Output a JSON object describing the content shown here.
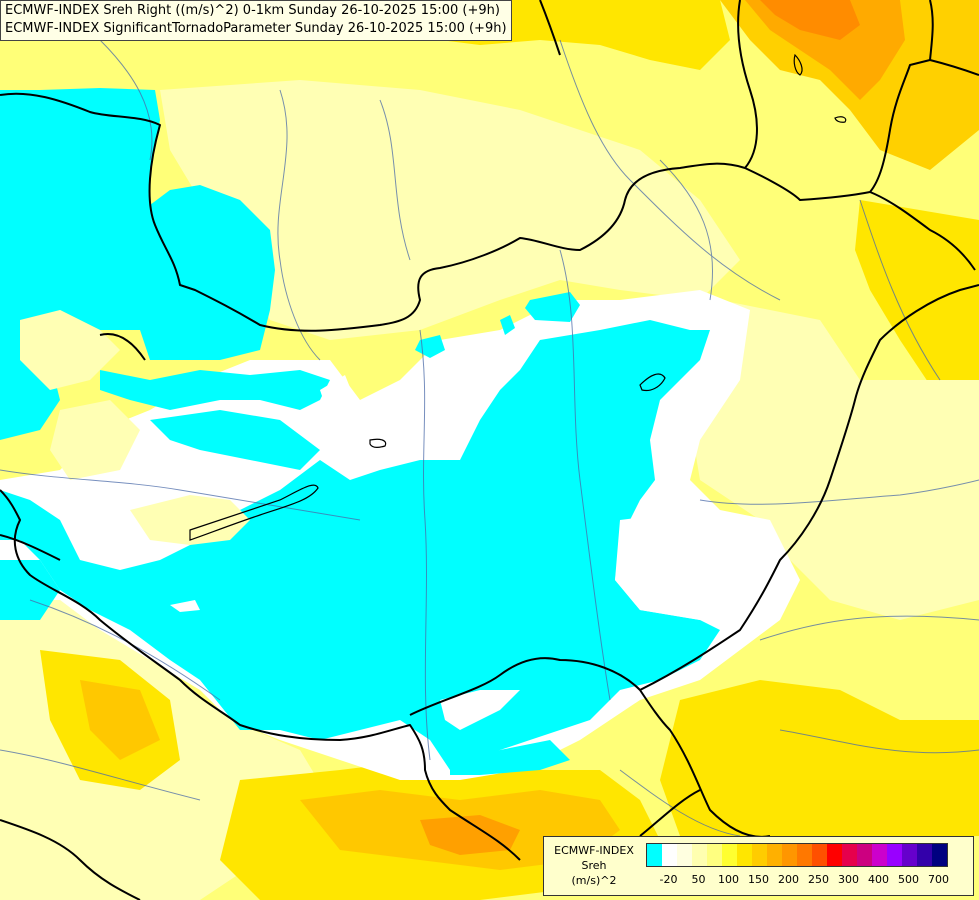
{
  "title": {
    "line1": "ECMWF-INDEX Sreh Right ((m/s)^2) 0-1km Sunday 26-10-2025 15:00 (+9h)",
    "line2": "ECMWF-INDEX SignificantTornadoParameter Sunday 26-10-2025 15:00 (+9h)"
  },
  "legend": {
    "line1": "ECMWF-INDEX",
    "line2": "Sreh",
    "line3": "(m/s)^2",
    "colors": [
      "#00ffff",
      "#ffffff",
      "#ffffe0",
      "#ffffb0",
      "#ffff80",
      "#ffff30",
      "#ffe600",
      "#ffcc00",
      "#ffb000",
      "#ff9600",
      "#ff7800",
      "#ff5000",
      "#ff0000",
      "#e6004c",
      "#cc0080",
      "#cc00cc",
      "#9900ff",
      "#6600cc",
      "#3300aa",
      "#000080"
    ],
    "ticks": [
      "-20",
      "50",
      "100",
      "150",
      "200",
      "250",
      "300",
      "400",
      "500",
      "700"
    ]
  },
  "colors": {
    "cyan": "#00ffff",
    "white": "#ffffff",
    "pale_yellow": "#ffffb4",
    "light_yellow": "#ffff78",
    "yellow": "#ffff00",
    "gold": "#ffe600",
    "amber": "#ffc800",
    "orange": "#ffa000",
    "deep_orange": "#ff8200",
    "border": "#000000",
    "river": "#4a6aa8"
  }
}
